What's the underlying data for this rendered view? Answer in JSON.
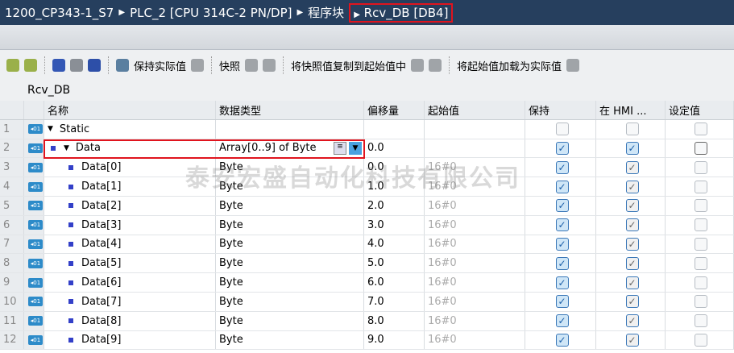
{
  "breadcrumb": [
    "1200_CP343-1_S7",
    "PLC_2 [CPU 314C-2 PN/DP]",
    "程序块",
    "Rcv_DB [DB4]"
  ],
  "toolbar": {
    "keep_actual": "保持实际值",
    "snapshot": "快照",
    "copy_snapshot": "将快照值复制到起始值中",
    "load_start": "将起始值加载为实际值"
  },
  "db_name": "Rcv_DB",
  "columns": [
    "名称",
    "数据类型",
    "偏移量",
    "起始值",
    "保持",
    "在 HMI ...",
    "设定值"
  ],
  "rows": [
    {
      "num": "1",
      "name": "Static",
      "type": "",
      "offset": "",
      "start": "",
      "retain": false,
      "hmi": false,
      "setpoint": false,
      "level": 0,
      "expand": true
    },
    {
      "num": "2",
      "name": "Data",
      "type": "Array[0..9] of Byte",
      "offset": "0.0",
      "start": "",
      "retain": true,
      "hmi": true,
      "setpoint": false,
      "level": 1,
      "expand": true
    },
    {
      "num": "3",
      "name": "Data[0]",
      "type": "Byte",
      "offset": "0.0",
      "start": "16#0",
      "retain": true,
      "hmi": true,
      "setpoint": false,
      "level": 2
    },
    {
      "num": "4",
      "name": "Data[1]",
      "type": "Byte",
      "offset": "1.0",
      "start": "16#0",
      "retain": true,
      "hmi": true,
      "setpoint": false,
      "level": 2
    },
    {
      "num": "5",
      "name": "Data[2]",
      "type": "Byte",
      "offset": "2.0",
      "start": "16#0",
      "retain": true,
      "hmi": true,
      "setpoint": false,
      "level": 2
    },
    {
      "num": "6",
      "name": "Data[3]",
      "type": "Byte",
      "offset": "3.0",
      "start": "16#0",
      "retain": true,
      "hmi": true,
      "setpoint": false,
      "level": 2
    },
    {
      "num": "7",
      "name": "Data[4]",
      "type": "Byte",
      "offset": "4.0",
      "start": "16#0",
      "retain": true,
      "hmi": true,
      "setpoint": false,
      "level": 2
    },
    {
      "num": "8",
      "name": "Data[5]",
      "type": "Byte",
      "offset": "5.0",
      "start": "16#0",
      "retain": true,
      "hmi": true,
      "setpoint": false,
      "level": 2
    },
    {
      "num": "9",
      "name": "Data[6]",
      "type": "Byte",
      "offset": "6.0",
      "start": "16#0",
      "retain": true,
      "hmi": true,
      "setpoint": false,
      "level": 2
    },
    {
      "num": "10",
      "name": "Data[7]",
      "type": "Byte",
      "offset": "7.0",
      "start": "16#0",
      "retain": true,
      "hmi": true,
      "setpoint": false,
      "level": 2
    },
    {
      "num": "11",
      "name": "Data[8]",
      "type": "Byte",
      "offset": "8.0",
      "start": "16#0",
      "retain": true,
      "hmi": true,
      "setpoint": false,
      "level": 2
    },
    {
      "num": "12",
      "name": "Data[9]",
      "type": "Byte",
      "offset": "9.0",
      "start": "16#0",
      "retain": true,
      "hmi": true,
      "setpoint": false,
      "level": 2
    }
  ],
  "watermark": "泰安宏盛自动化科技有限公司",
  "colors": {
    "title_bg": "#263f5e",
    "highlight": "#e0141e"
  }
}
